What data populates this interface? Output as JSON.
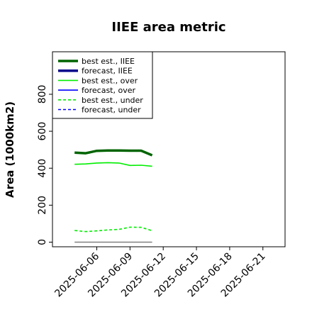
{
  "chart_data": {
    "type": "line",
    "title": "IIEE area metric",
    "xlabel": "",
    "ylabel": "Area (1000km2)",
    "x_ticks": [
      "2025-06-06",
      "2025-06-09",
      "2025-06-12",
      "2025-06-15",
      "2025-06-18",
      "2025-06-21"
    ],
    "highlight_tick": "2025-06-12",
    "highlight_color": "#228B22",
    "xlim": [
      "2025-06-02",
      "2025-06-23"
    ],
    "ylim": [
      -25,
      1030
    ],
    "y_ticks": [
      0,
      200,
      400,
      600,
      800
    ],
    "grid": false,
    "legend": {
      "position": "top-left"
    },
    "series": [
      {
        "name": "best est., IIEE",
        "color": "#006400",
        "style": "solid",
        "width": 3.5,
        "x": [
          "2025-06-04",
          "2025-06-05",
          "2025-06-06",
          "2025-06-07",
          "2025-06-08",
          "2025-06-09",
          "2025-06-10",
          "2025-06-11"
        ],
        "y": [
          484,
          481,
          494,
          496,
          496,
          495,
          495,
          470
        ]
      },
      {
        "name": "forecast, IIEE",
        "color": "#00008B",
        "style": "solid",
        "width": 3.5,
        "x": [],
        "y": []
      },
      {
        "name": "best est., over",
        "color": "#00ee00",
        "style": "solid",
        "width": 1.6,
        "x": [
          "2025-06-04",
          "2025-06-05",
          "2025-06-06",
          "2025-06-07",
          "2025-06-08",
          "2025-06-09",
          "2025-06-10",
          "2025-06-11"
        ],
        "y": [
          421,
          423,
          428,
          430,
          428,
          415,
          416,
          411
        ]
      },
      {
        "name": "forecast, over",
        "color": "#0000ff",
        "style": "solid",
        "width": 1.6,
        "x": [],
        "y": []
      },
      {
        "name": "best est., under",
        "color": "#00ee00",
        "style": "dashed",
        "width": 1.6,
        "x": [
          "2025-06-04",
          "2025-06-05",
          "2025-06-06",
          "2025-06-07",
          "2025-06-08",
          "2025-06-09",
          "2025-06-10",
          "2025-06-11"
        ],
        "y": [
          63,
          57,
          61,
          66,
          69,
          81,
          80,
          62
        ]
      },
      {
        "name": "forecast, under",
        "color": "#0000ff",
        "style": "dashed",
        "width": 1.6,
        "x": [],
        "y": []
      }
    ],
    "baseline": {
      "color": "#808080",
      "x": [
        "2025-06-04",
        "2025-06-11"
      ],
      "y": [
        0,
        0
      ]
    }
  }
}
